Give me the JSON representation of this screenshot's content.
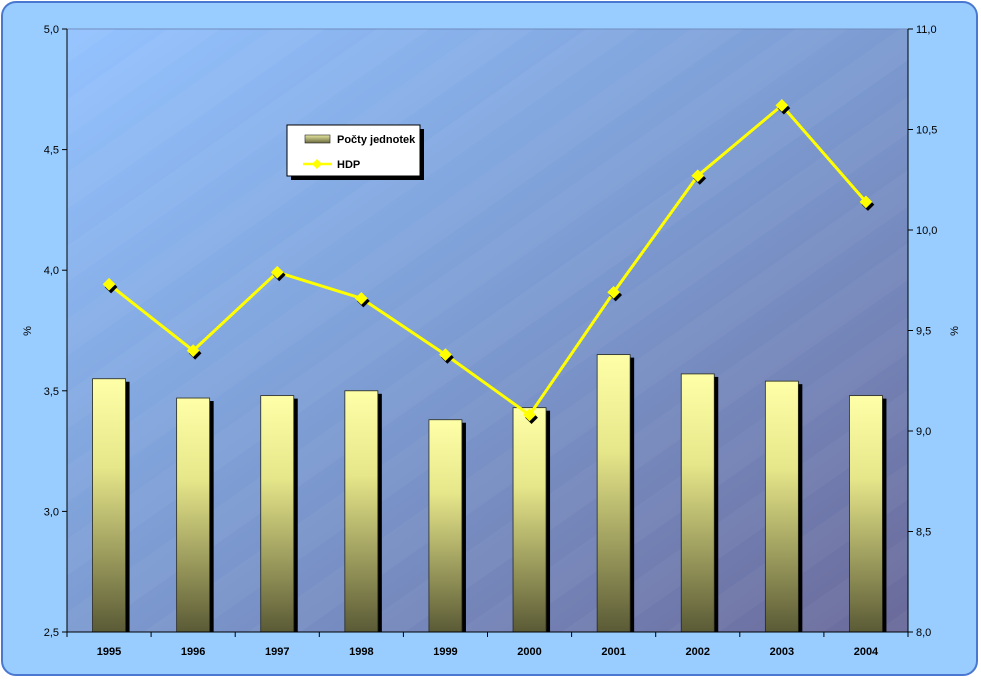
{
  "chart_data": {
    "type": "bar",
    "categories": [
      "1995",
      "1996",
      "1997",
      "1998",
      "1999",
      "2000",
      "2001",
      "2002",
      "2003",
      "2004"
    ],
    "series": [
      {
        "name": "Počty jednotek",
        "type": "bar",
        "axis": "left",
        "values": [
          3.55,
          3.47,
          3.48,
          3.5,
          3.38,
          3.43,
          3.65,
          3.57,
          3.54,
          3.48
        ]
      },
      {
        "name": "HDP",
        "type": "line",
        "axis": "right",
        "values": [
          9.73,
          9.4,
          9.79,
          9.66,
          9.38,
          9.08,
          9.69,
          10.27,
          10.62,
          10.14
        ]
      }
    ],
    "y_left": {
      "label": "%",
      "range": [
        2.5,
        5.0
      ],
      "ticks": [
        "2,5",
        "3,0",
        "3,5",
        "4,0",
        "4,5",
        "5,0"
      ]
    },
    "y_right": {
      "label": "%",
      "range": [
        8.0,
        11.0
      ],
      "ticks": [
        "8,0",
        "8,5",
        "9,0",
        "9,5",
        "10,0",
        "10,5",
        "11,0"
      ]
    },
    "legend_position": "top-left inside plot",
    "grid": false,
    "colors": {
      "frame_background": "#99CCFF",
      "frame_border": "#4A78D0",
      "bar_top": "#FFFFA0",
      "bar_bottom": "#5C5C38",
      "line": "#FFFF00",
      "marker_shadow": "#000000",
      "plot_gradient_start": "#94C3FF",
      "plot_gradient_end": "#6D6D9E"
    }
  }
}
